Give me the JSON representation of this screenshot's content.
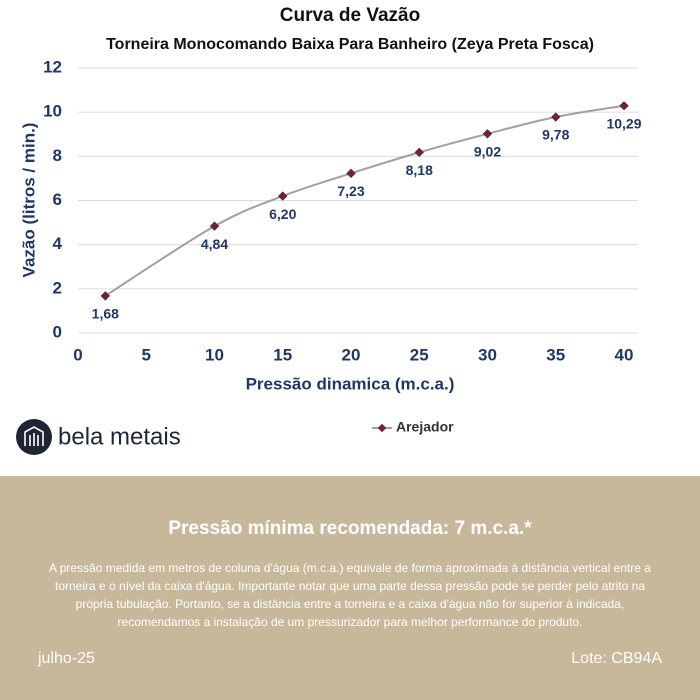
{
  "chart_data": {
    "type": "line",
    "title": "Curva de Vazão",
    "subtitle": "Torneira Monocomando Baixa Para Banheiro (Zeya Preta Fosca)",
    "x_label": "Pressão dinamica (m.c.a.)",
    "y_label": "Vazão (litros / min.)",
    "x": [
      2,
      10,
      15,
      20,
      25,
      30,
      35,
      40
    ],
    "series": [
      {
        "name": "Arejador",
        "color": "#7a1f2e",
        "line_color": "#a0a0a0",
        "values": [
          1.68,
          4.84,
          6.2,
          7.23,
          8.18,
          9.02,
          9.78,
          10.29
        ],
        "value_labels": [
          "1,68",
          "4,84",
          "6,20",
          "7,23",
          "8,18",
          "9,02",
          "9,78",
          "10,29"
        ]
      }
    ],
    "xlim": [
      0,
      40
    ],
    "xticks": [
      0,
      5,
      10,
      15,
      20,
      25,
      30,
      35,
      40
    ],
    "ylim": [
      0,
      12
    ],
    "yticks": [
      0,
      2,
      4,
      6,
      8,
      10,
      12
    ],
    "grid": true,
    "legend": "bottom"
  },
  "brand": "bela metais",
  "footer": {
    "title": "Pressão mínima recomendada: 7 m.c.a.*",
    "text": "A pressão medida em metros de coluna d'água (m.c.a.) equivale de forma aproximada à distância vertical entre a torneira e o nível da caixa d'água. Importante notar que uma parte dessa pressão pode se perder pelo atrito na própria tubulação. Portanto, se a distância entre a torneira e a caixa d'água não for superior à indicada, recomendamos a instalação de um pressurizador para melhor performance do produto.",
    "date": "julho-25",
    "lot": "Lote: CB94A"
  }
}
